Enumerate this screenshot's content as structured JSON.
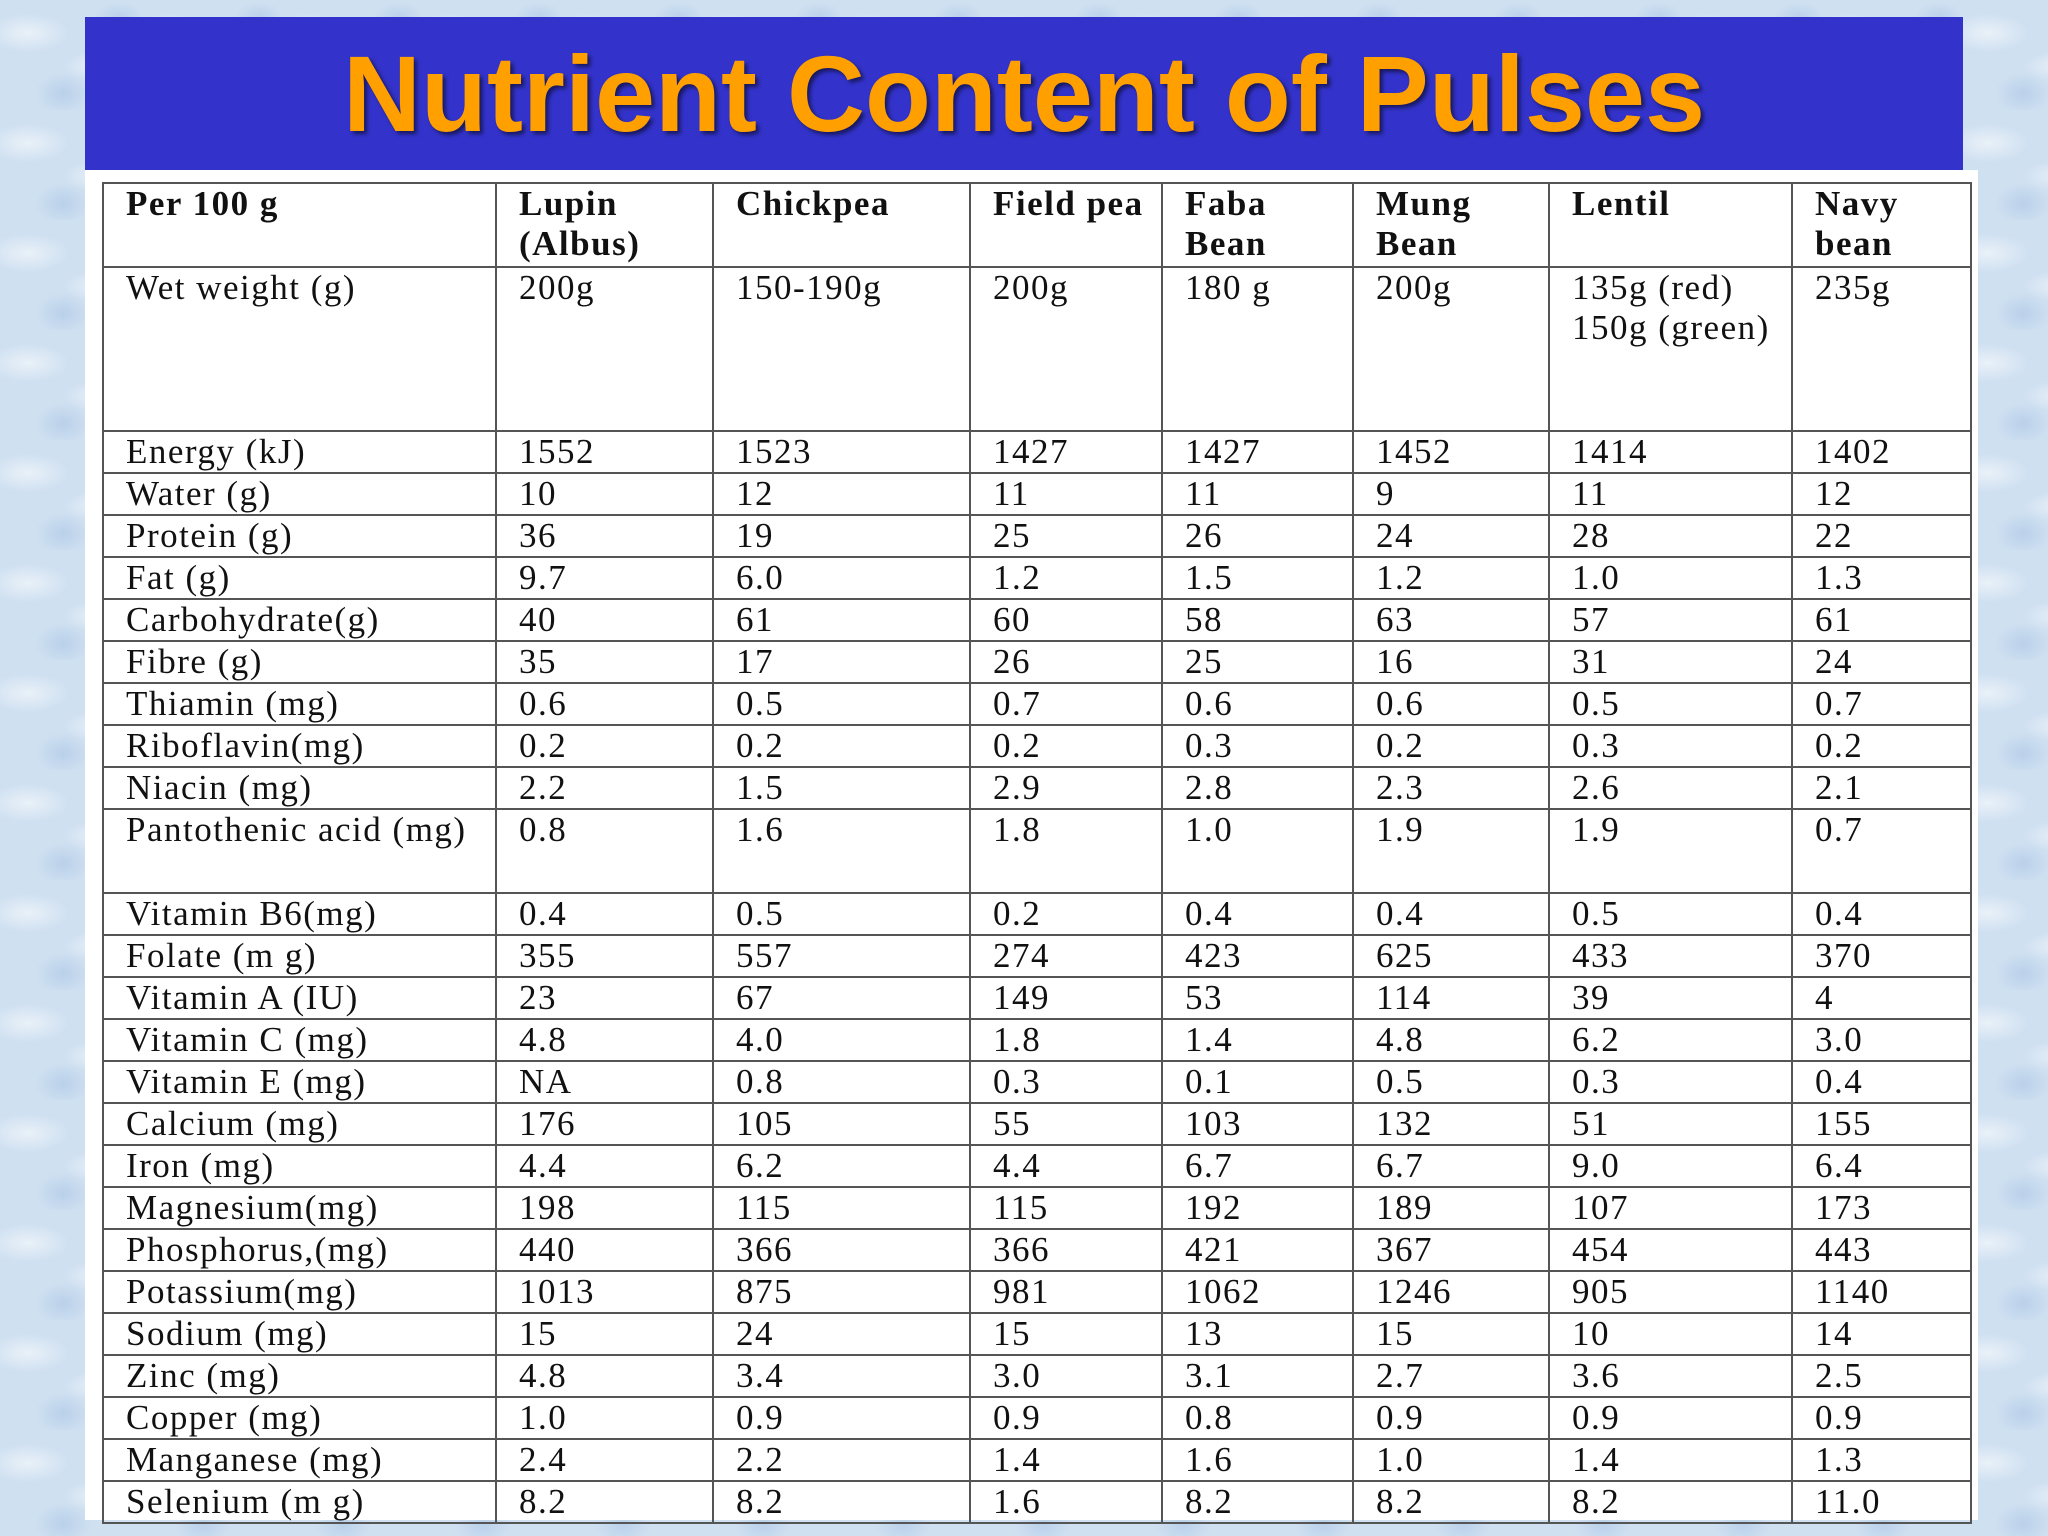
{
  "title": "Nutrient Content of Pulses",
  "table": {
    "headers": [
      "Per 100 g",
      "Lupin (Albus)",
      "Chickpea",
      "Field pea",
      "Faba Bean",
      "Mung Bean",
      "Lentil",
      "Navy bean"
    ],
    "rows": [
      {
        "label": "Wet weight (g)",
        "values": [
          "200g",
          "150-190g",
          "200g",
          "180 g",
          "200g",
          "135g (red) 150g (green)",
          "235g"
        ]
      },
      {
        "label": "Energy (kJ)",
        "values": [
          "1552",
          "1523",
          "1427",
          "1427",
          "1452",
          "1414",
          "1402"
        ]
      },
      {
        "label": "Water (g)",
        "values": [
          "10",
          "12",
          "11",
          "11",
          "9",
          "11",
          "12"
        ]
      },
      {
        "label": "Protein (g)",
        "values": [
          "36",
          "19",
          "25",
          "26",
          "24",
          "28",
          "22"
        ]
      },
      {
        "label": "Fat (g)",
        "values": [
          "9.7",
          "6.0",
          "1.2",
          "1.5",
          "1.2",
          "1.0",
          "1.3"
        ]
      },
      {
        "label": "Carbohydrate(g)",
        "values": [
          "40",
          "61",
          "60",
          "58",
          "63",
          "57",
          "61"
        ]
      },
      {
        "label": "Fibre (g)",
        "values": [
          "35",
          "17",
          "26",
          "25",
          "16",
          "31",
          "24"
        ]
      },
      {
        "label": "Thiamin (mg)",
        "values": [
          "0.6",
          "0.5",
          "0.7",
          "0.6",
          "0.6",
          "0.5",
          "0.7"
        ]
      },
      {
        "label": "Riboflavin(mg)",
        "values": [
          "0.2",
          "0.2",
          "0.2",
          "0.3",
          "0.2",
          "0.3",
          "0.2"
        ]
      },
      {
        "label": "Niacin (mg)",
        "values": [
          "2.2",
          "1.5",
          "2.9",
          "2.8",
          "2.3",
          "2.6",
          "2.1"
        ]
      },
      {
        "label": "Pantothenic acid (mg)",
        "values": [
          "0.8",
          "1.6",
          "1.8",
          "1.0",
          "1.9",
          "1.9",
          "0.7"
        ]
      },
      {
        "label": "Vitamin B6(mg)",
        "values": [
          "0.4",
          "0.5",
          "0.2",
          "0.4",
          "0.4",
          "0.5",
          "0.4"
        ]
      },
      {
        "label": "Folate (m g)",
        "values": [
          "355",
          "557",
          "274",
          "423",
          "625",
          "433",
          "370"
        ]
      },
      {
        "label": "Vitamin A (IU)",
        "values": [
          "23",
          "67",
          "149",
          "53",
          "114",
          "39",
          "4"
        ]
      },
      {
        "label": "Vitamin C (mg)",
        "values": [
          "4.8",
          "4.0",
          "1.8",
          "1.4",
          "4.8",
          "6.2",
          "3.0"
        ]
      },
      {
        "label": "Vitamin E (mg)",
        "values": [
          "NA",
          "0.8",
          "0.3",
          "0.1",
          "0.5",
          "0.3",
          "0.4"
        ]
      },
      {
        "label": "Calcium (mg)",
        "values": [
          "176",
          "105",
          "55",
          "103",
          "132",
          "51",
          "155"
        ]
      },
      {
        "label": "Iron (mg)",
        "values": [
          "4.4",
          "6.2",
          "4.4",
          "6.7",
          "6.7",
          "9.0",
          "6.4"
        ]
      },
      {
        "label": "Magnesium(mg)",
        "values": [
          "198",
          "115",
          "115",
          "192",
          "189",
          "107",
          "173"
        ]
      },
      {
        "label": "Phosphorus,(mg)",
        "values": [
          "440",
          "366",
          "366",
          "421",
          "367",
          "454",
          "443"
        ]
      },
      {
        "label": "Potassium(mg)",
        "values": [
          "1013",
          "875",
          "981",
          "1062",
          "1246",
          "905",
          "1140"
        ]
      },
      {
        "label": "Sodium (mg)",
        "values": [
          "15",
          "24",
          "15",
          "13",
          "15",
          "10",
          "14"
        ]
      },
      {
        "label": "Zinc (mg)",
        "values": [
          "4.8",
          "3.4",
          "3.0",
          "3.1",
          "2.7",
          "3.6",
          "2.5"
        ]
      },
      {
        "label": "Copper (mg)",
        "values": [
          "1.0",
          "0.9",
          "0.9",
          "0.8",
          "0.9",
          "0.9",
          "0.9"
        ]
      },
      {
        "label": "Manganese (mg)",
        "values": [
          "2.4",
          "2.2",
          "1.4",
          "1.6",
          "1.0",
          "1.4",
          "1.3"
        ]
      },
      {
        "label": "Selenium (m g)",
        "values": [
          "8.2",
          "8.2",
          "1.6",
          "8.2",
          "8.2",
          "8.2",
          "11.0"
        ]
      }
    ]
  }
}
